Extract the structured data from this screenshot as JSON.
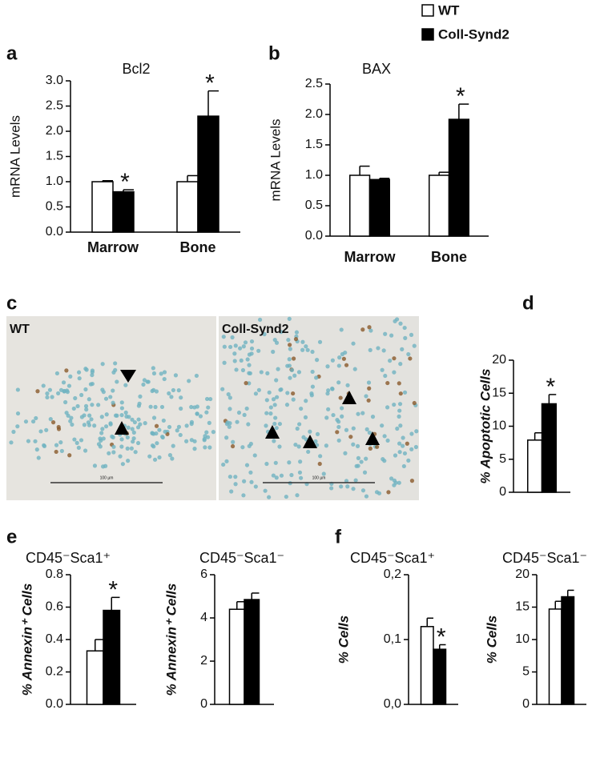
{
  "panel_labels": [
    "a",
    "b",
    "c",
    "d",
    "e",
    "f"
  ],
  "micrographs": [
    {
      "label": "WT",
      "scale_label": "100 µm"
    },
    {
      "label": "Coll-Synd2",
      "scale_label": "100 µm"
    }
  ],
  "chart_data": [
    {
      "type": "bar",
      "title": "Bcl2",
      "y_label": "mRNA Levels",
      "categories": [
        "Marrow",
        "Bone"
      ],
      "series": [
        {
          "name": "WT",
          "color": "#ffffff",
          "values": [
            1.0,
            1.0
          ],
          "errors": [
            0.02,
            0.12
          ],
          "significance": [
            null,
            null
          ]
        },
        {
          "name": "Coll-Synd2",
          "color": "#000000",
          "values": [
            0.8,
            2.3
          ],
          "errors": [
            0.04,
            0.5
          ],
          "significance": [
            "*",
            "*"
          ]
        }
      ],
      "ylim": [
        0,
        3
      ],
      "yticks": [
        {
          "value": 0,
          "label": "0.0"
        },
        0.5,
        {
          "value": 1,
          "label": "1.0"
        },
        1.5,
        {
          "value": 2,
          "label": "2.0"
        },
        2.5,
        {
          "value": 3,
          "label": "3.0"
        }
      ]
    },
    {
      "type": "bar",
      "title": "BAX",
      "y_label": "mRNA Levels",
      "categories": [
        "Marrow",
        "Bone"
      ],
      "series": [
        {
          "color": "#ffffff",
          "values": [
            1.0,
            1.0
          ],
          "errors": [
            0.15,
            0.05
          ],
          "significance": [
            null,
            null
          ]
        },
        {
          "color": "#000000",
          "values": [
            0.93,
            1.92
          ],
          "errors": [
            0.02,
            0.25
          ],
          "significance": [
            null,
            "*"
          ]
        }
      ],
      "ylim": [
        0,
        2.5
      ],
      "yticks": [
        {
          "value": 0,
          "label": "0.0"
        },
        0.5,
        {
          "value": 1,
          "label": "1.0"
        },
        1.5,
        {
          "value": 2,
          "label": "2.0"
        },
        2.5
      ]
    },
    {
      "type": "bar",
      "y_label": "% Apoptotic Cells",
      "series": [
        {
          "color": "#ffffff",
          "values": [
            7.9
          ],
          "errors": [
            1.1
          ],
          "significance": [
            null
          ]
        },
        {
          "color": "#000000",
          "values": [
            13.4
          ],
          "errors": [
            1.4
          ],
          "significance": [
            "*"
          ]
        }
      ],
      "ylim": [
        0,
        20
      ],
      "yticks": [
        0,
        5,
        10,
        15,
        20
      ]
    },
    {
      "type": "bar",
      "title": "CD45⁻Sca1⁺",
      "y_label": "% Annexin⁺ Cells",
      "series": [
        {
          "color": "#ffffff",
          "values": [
            0.33
          ],
          "errors": [
            0.07
          ],
          "significance": [
            null
          ]
        },
        {
          "color": "#000000",
          "values": [
            0.58
          ],
          "errors": [
            0.08
          ],
          "significance": [
            "*"
          ]
        }
      ],
      "ylim": [
        0,
        0.8
      ],
      "yticks": [
        {
          "value": 0,
          "label": "0.0"
        },
        0.2,
        0.4,
        0.6,
        0.8
      ]
    },
    {
      "type": "bar",
      "title": "CD45⁻Sca1⁻",
      "y_label": "% Annexin⁺ Cells",
      "series": [
        {
          "color": "#ffffff",
          "values": [
            4.4
          ],
          "errors": [
            0.35
          ],
          "significance": [
            null
          ]
        },
        {
          "color": "#000000",
          "values": [
            4.85
          ],
          "errors": [
            0.3
          ],
          "significance": [
            null
          ]
        }
      ],
      "ylim": [
        0,
        6
      ],
      "yticks": [
        0,
        2,
        4,
        6
      ]
    },
    {
      "type": "bar",
      "title": "CD45⁻Sca1⁺",
      "y_label": "% Cells",
      "series": [
        {
          "color": "#ffffff",
          "values": [
            0.12
          ],
          "errors": [
            0.013
          ],
          "significance": [
            null
          ]
        },
        {
          "color": "#000000",
          "values": [
            0.085
          ],
          "errors": [
            0.007
          ],
          "significance": [
            "*"
          ]
        }
      ],
      "ylim": [
        0,
        0.2
      ],
      "yticks": [
        {
          "value": 0,
          "label": "0,0"
        },
        {
          "value": 0.1,
          "label": "0,1"
        },
        {
          "value": 0.2,
          "label": "0,2"
        }
      ]
    },
    {
      "type": "bar",
      "title": "CD45⁻Sca1⁻",
      "y_label": "% Cells",
      "series": [
        {
          "color": "#ffffff",
          "values": [
            14.7
          ],
          "errors": [
            1.2
          ],
          "significance": [
            null
          ]
        },
        {
          "color": "#000000",
          "values": [
            16.6
          ],
          "errors": [
            1.0
          ],
          "significance": [
            null
          ]
        }
      ],
      "ylim": [
        0,
        20
      ],
      "yticks": [
        0,
        5,
        10,
        15,
        20
      ]
    }
  ]
}
